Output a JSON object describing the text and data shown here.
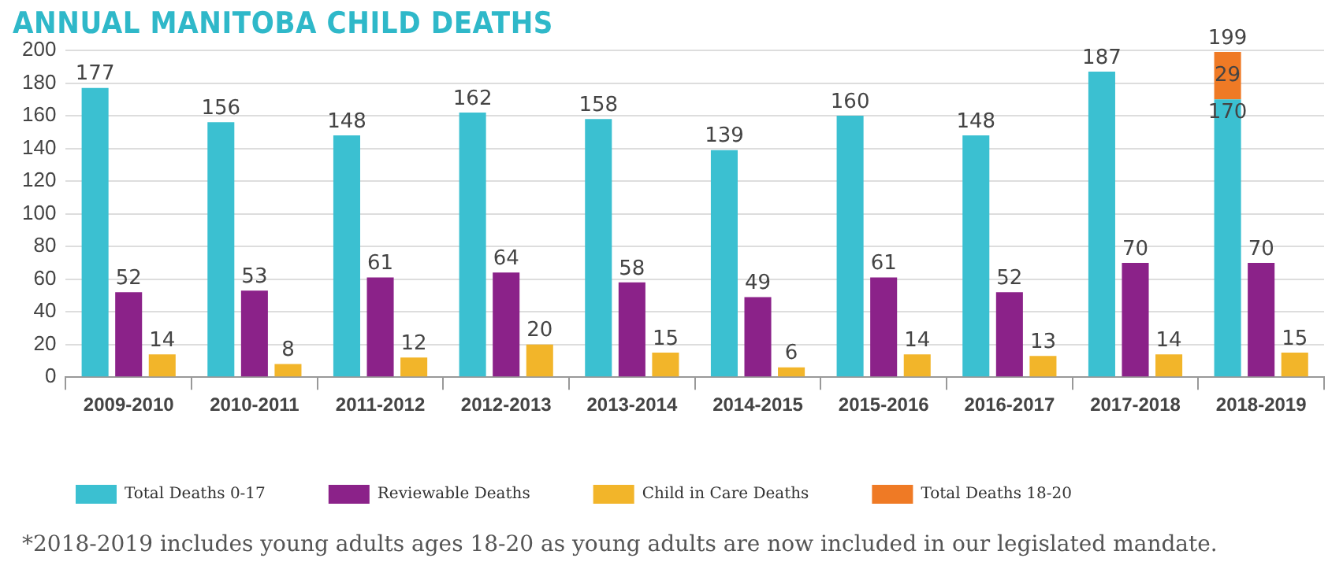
{
  "chart_data": {
    "type": "bar",
    "title": "ANNUAL MANITOBA CHILD DEATHS",
    "categories": [
      "2009-2010",
      "2010-2011",
      "2011-2012",
      "2012-2013",
      "2013-2014",
      "2014-2015",
      "2015-2016",
      "2016-2017",
      "2017-2018",
      "2018-2019"
    ],
    "series": [
      {
        "name": "Total Deaths 0-17",
        "color": "#3bc0d1",
        "values": [
          177,
          156,
          148,
          162,
          158,
          139,
          160,
          148,
          187,
          170
        ]
      },
      {
        "name": "Reviewable Deaths",
        "color": "#8b2289",
        "values": [
          52,
          53,
          61,
          64,
          58,
          49,
          61,
          52,
          70,
          70
        ]
      },
      {
        "name": "Child in Care Deaths",
        "color": "#f2b52a",
        "values": [
          14,
          8,
          12,
          20,
          15,
          6,
          14,
          13,
          14,
          15
        ]
      },
      {
        "name": "Total Deaths 18-20",
        "color": "#ef7a25",
        "values": [
          null,
          null,
          null,
          null,
          null,
          null,
          null,
          null,
          null,
          29
        ],
        "base": [
          null,
          null,
          null,
          null,
          null,
          null,
          null,
          null,
          null,
          170
        ]
      }
    ],
    "ylim": [
      0,
      200
    ],
    "yticks": [
      0,
      20,
      40,
      60,
      80,
      100,
      120,
      140,
      160,
      180,
      200
    ],
    "grid": "y",
    "legend": "bottom",
    "data_labels": true,
    "annotations": [
      "199",
      "*2018-2019 includes young adults ages 18-20 as young adults are now included in our legislated mandate."
    ]
  }
}
